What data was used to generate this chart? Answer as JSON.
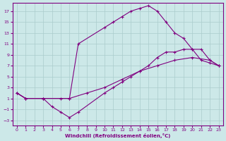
{
  "xlabel": "Windchill (Refroidissement éolien,°C)",
  "bg_color": "#cce8e8",
  "line_color": "#800080",
  "grid_color": "#aacccc",
  "xlim": [
    -0.5,
    23.5
  ],
  "ylim": [
    -4,
    18.5
  ],
  "xticks": [
    0,
    1,
    2,
    3,
    4,
    5,
    6,
    7,
    8,
    9,
    10,
    11,
    12,
    13,
    14,
    15,
    16,
    17,
    18,
    19,
    20,
    21,
    22,
    23
  ],
  "yticks": [
    -3,
    -1,
    1,
    3,
    5,
    7,
    9,
    11,
    13,
    15,
    17
  ],
  "line1_x": [
    0,
    1,
    3,
    6,
    7,
    10,
    11,
    12,
    13,
    14,
    15,
    16,
    17,
    18,
    19,
    20,
    21,
    22,
    23
  ],
  "line1_y": [
    2,
    1,
    1,
    1,
    11,
    14,
    15,
    16,
    17,
    17.5,
    18,
    17,
    15,
    13,
    12,
    10,
    8,
    7.5,
    7
  ],
  "line2_x": [
    0,
    1,
    3,
    4,
    5,
    6,
    7,
    10,
    11,
    12,
    13,
    14,
    15,
    16,
    17,
    18,
    19,
    20,
    21,
    22,
    23
  ],
  "line2_y": [
    2,
    1,
    1,
    -0.5,
    -1.5,
    -2.5,
    -1.5,
    2,
    3,
    4,
    5,
    6,
    7,
    8.5,
    9.5,
    9.5,
    10,
    10,
    10,
    8,
    7
  ],
  "line3_x": [
    0,
    1,
    3,
    5,
    6,
    8,
    10,
    12,
    14,
    16,
    18,
    20,
    22,
    23
  ],
  "line3_y": [
    2,
    1,
    1,
    1,
    1,
    2,
    3,
    4.5,
    6,
    7,
    8,
    8.5,
    8,
    7
  ]
}
